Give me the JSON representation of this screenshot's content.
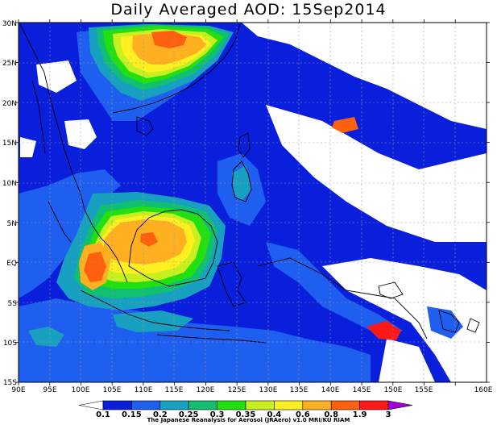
{
  "title": "Daily Averaged AOD: 15Sep2014",
  "credit": "The Japanese Reanalysis for Aerosol (JRAero) v1.0 MRI/KU RIAM",
  "axes": {
    "lon_labels": [
      "90E",
      "95E",
      "100E",
      "105E",
      "110E",
      "115E",
      "120E",
      "125E",
      "130E",
      "135E",
      "140E",
      "145E",
      "150E",
      "155E",
      "160E"
    ],
    "lat_labels": [
      "30N",
      "25N",
      "20N",
      "15N",
      "10N",
      "5N",
      "EQ",
      "5S",
      "10S",
      "15S"
    ]
  },
  "colorbar": {
    "levels": [
      "0.1",
      "0.15",
      "0.2",
      "0.25",
      "0.3",
      "0.35",
      "0.4",
      "0.6",
      "0.8",
      "1.9",
      "3"
    ],
    "colors": [
      "#ffffff",
      "#0a1fdc",
      "#1e5ff0",
      "#18a0c0",
      "#10c070",
      "#22e010",
      "#c8f020",
      "#ffee20",
      "#ffb020",
      "#ff6010",
      "#ff1818",
      "#a000d8"
    ]
  },
  "palette": {
    "ocean_low": "#0a1fdc",
    "blue2": "#1e5ff0",
    "teal": "#18a0c0",
    "green": "#10c070",
    "lime": "#22e010",
    "yellow_green": "#c8f020",
    "yellow": "#ffee20",
    "orange": "#ffb020",
    "dark_orange": "#ff6010",
    "red": "#ff1818"
  }
}
